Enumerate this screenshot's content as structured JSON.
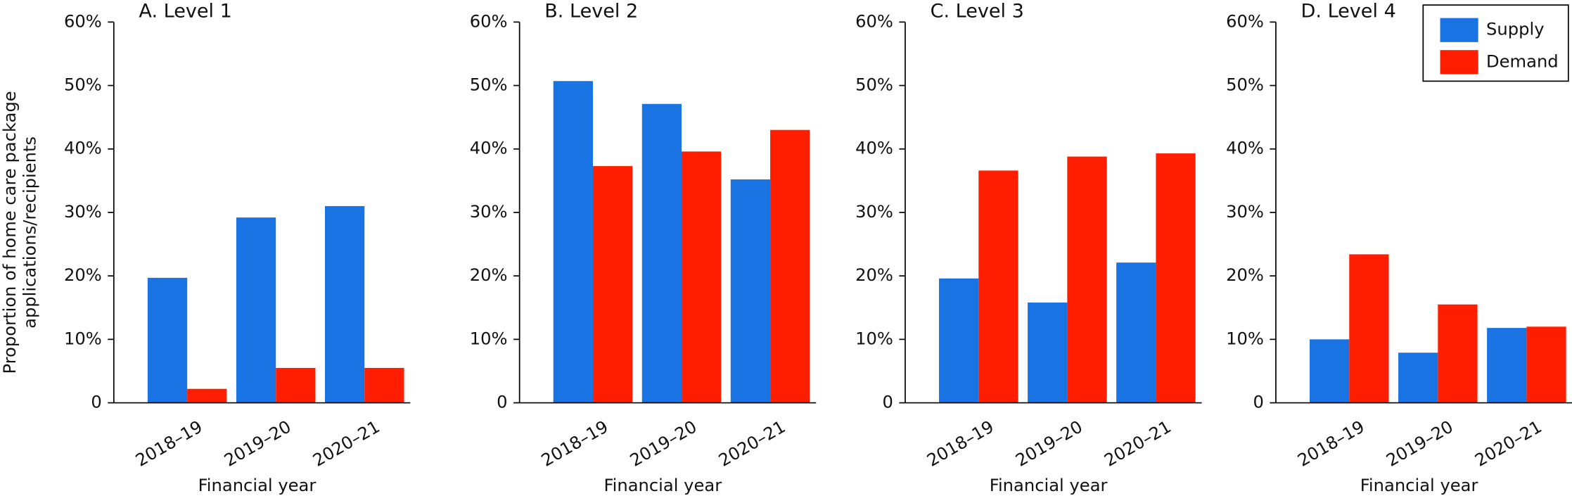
{
  "chart_data": [
    {
      "type": "bar",
      "title": "A. Level 1",
      "xlabel": "Financial year",
      "ylabel": [
        "Proportion of home care package",
        "applications/recipients"
      ],
      "categories": [
        "2018–19",
        "2019–20",
        "2020–21"
      ],
      "series": [
        {
          "name": "Supply",
          "color": "#1a73e3",
          "values": [
            19.7,
            29.2,
            31.0
          ]
        },
        {
          "name": "Demand",
          "color": "#ff1e00",
          "values": [
            2.2,
            5.5,
            5.5
          ]
        }
      ],
      "ylim": [
        0,
        60
      ],
      "yticks": [
        0,
        {
          "value": 10,
          "label": "10%"
        },
        {
          "value": 20,
          "label": "20%"
        },
        {
          "value": 30,
          "label": "30%"
        },
        {
          "value": 40,
          "label": "40%"
        },
        {
          "value": 50,
          "label": "50%"
        },
        {
          "value": 60,
          "label": "60%"
        }
      ]
    },
    {
      "type": "bar",
      "title": "B. Level 2",
      "xlabel": "Financial year",
      "categories": [
        "2018–19",
        "2019–20",
        "2020–21"
      ],
      "series": [
        {
          "name": "Supply",
          "color": "#1a73e3",
          "values": [
            50.7,
            47.1,
            35.2
          ]
        },
        {
          "name": "Demand",
          "color": "#ff1e00",
          "values": [
            37.3,
            39.6,
            43.0
          ]
        }
      ],
      "ylim": [
        0,
        60
      ],
      "yticks": [
        0,
        {
          "value": 10,
          "label": "10%"
        },
        {
          "value": 20,
          "label": "20%"
        },
        {
          "value": 30,
          "label": "30%"
        },
        {
          "value": 40,
          "label": "40%"
        },
        {
          "value": 50,
          "label": "50%"
        },
        {
          "value": 60,
          "label": "60%"
        }
      ]
    },
    {
      "type": "bar",
      "title": "C. Level 3",
      "xlabel": "Financial year",
      "categories": [
        "2018–19",
        "2019–20",
        "2020–21"
      ],
      "series": [
        {
          "name": "Supply",
          "color": "#1a73e3",
          "values": [
            19.6,
            15.8,
            22.1
          ]
        },
        {
          "name": "Demand",
          "color": "#ff1e00",
          "values": [
            36.6,
            38.8,
            39.3
          ]
        }
      ],
      "ylim": [
        0,
        60
      ],
      "yticks": [
        0,
        {
          "value": 10,
          "label": "10%"
        },
        {
          "value": 20,
          "label": "20%"
        },
        {
          "value": 30,
          "label": "30%"
        },
        {
          "value": 40,
          "label": "40%"
        },
        {
          "value": 50,
          "label": "50%"
        },
        {
          "value": 60,
          "label": "60%"
        }
      ]
    },
    {
      "type": "bar",
      "title": "D. Level 4",
      "xlabel": "Financial year",
      "categories": [
        "2018–19",
        "2019–20",
        "2020–21"
      ],
      "series": [
        {
          "name": "Supply",
          "color": "#1a73e3",
          "values": [
            10.0,
            7.9,
            11.8
          ]
        },
        {
          "name": "Demand",
          "color": "#ff1e00",
          "values": [
            23.4,
            15.5,
            12.0
          ]
        }
      ],
      "ylim": [
        0,
        60
      ],
      "yticks": [
        0,
        {
          "value": 10,
          "label": "10%"
        },
        {
          "value": 20,
          "label": "20%"
        },
        {
          "value": 30,
          "label": "30%"
        },
        {
          "value": 40,
          "label": "40%"
        },
        {
          "value": 50,
          "label": "50%"
        },
        {
          "value": 60,
          "label": "60%"
        }
      ],
      "legend": "upper right"
    }
  ]
}
